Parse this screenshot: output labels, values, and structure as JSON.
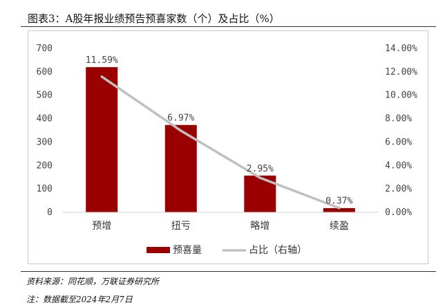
{
  "title": "图表3：A股年报业绩预告预喜家数（个）及占比（%）",
  "source": "资料来源：同花顺，万联证券研究所",
  "note": "注：数据截至2024年2月7日",
  "colors": {
    "bar": "#9b0000",
    "line": "#c0c0c0"
  },
  "chart_data": {
    "type": "bar",
    "categories": [
      "预增",
      "扭亏",
      "略增",
      "续盈"
    ],
    "series": [
      {
        "name": "预喜量",
        "type": "bar",
        "axis": "left",
        "values": [
          620,
          373,
          157,
          18
        ]
      },
      {
        "name": "占比（右轴）",
        "type": "line",
        "axis": "right",
        "values": [
          11.59,
          6.97,
          2.95,
          0.37
        ]
      }
    ],
    "data_labels": [
      "11.59%",
      "6.97%",
      "2.95%",
      "0.37%"
    ],
    "y_left": {
      "ticks": [
        "0",
        "100",
        "200",
        "300",
        "400",
        "500",
        "600",
        "700"
      ],
      "ylim": [
        0,
        700
      ]
    },
    "y_right": {
      "ticks": [
        "0.00%",
        "2.00%",
        "4.00%",
        "6.00%",
        "8.00%",
        "10.00%",
        "12.00%",
        "14.00%"
      ],
      "ylim": [
        0,
        14
      ]
    },
    "legend_position": "bottom",
    "grid": false
  }
}
